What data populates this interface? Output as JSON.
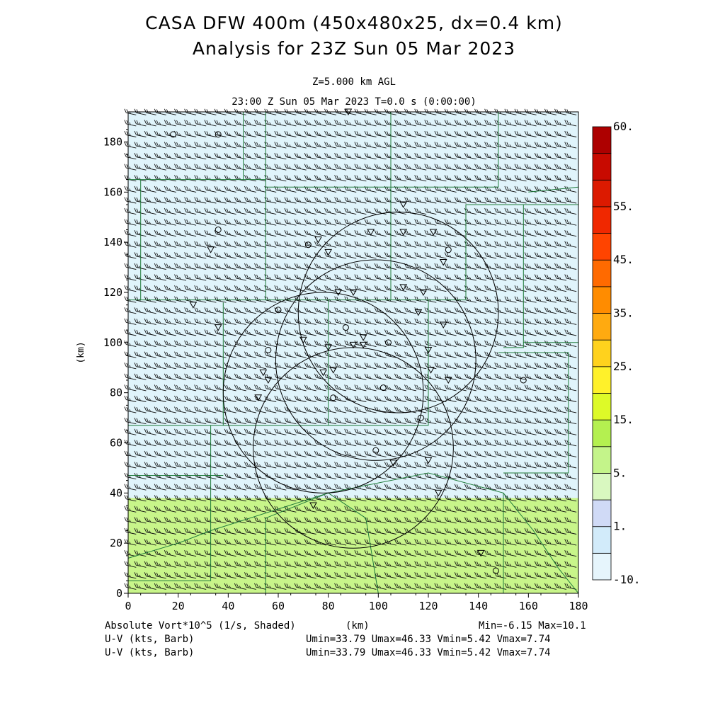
{
  "header": {
    "title_line1": "CASA DFW 400m (450x480x25, dx=0.4 km)",
    "title_line2": "Analysis for 23Z Sun 05 Mar 2023",
    "level": "Z=5.000 km AGL",
    "valid_time": "23:00 Z Sun 05 Mar 2023    T=0.0 s (0:00:00)"
  },
  "footer": {
    "field1": "Absolute Vort*10^5 (1/s, Shaded)",
    "xunit": "(km)",
    "minmax": "Min=-6.15 Max=10.1",
    "field2": "U-V (kts, Barb)",
    "field3": "U-V (kts, Barb)",
    "stats2": "Umin=33.79 Umax=46.33 Vmin=5.42 Vmax=7.74",
    "stats3": "Umin=33.79 Umax=46.33 Vmin=5.42 Vmax=7.74"
  },
  "chart_data": {
    "type": "heatmap",
    "xlabel": "(km)",
    "ylabel": "(km)",
    "xlim": [
      0,
      180
    ],
    "ylim": [
      0,
      192
    ],
    "xticks": [
      "0",
      "20",
      "40",
      "60",
      "80",
      "100",
      "120",
      "140",
      "160",
      "180"
    ],
    "yticks": [
      "0",
      "20",
      "40",
      "60",
      "80",
      "100",
      "120",
      "140",
      "160",
      "180"
    ],
    "xtick_values": [
      0,
      20,
      40,
      60,
      80,
      100,
      120,
      140,
      160,
      180
    ],
    "ytick_values": [
      0,
      20,
      40,
      60,
      80,
      100,
      120,
      140,
      160,
      180
    ],
    "shaded_regions": [
      {
        "y_range": [
          38,
          192
        ],
        "value_range": [
          -10,
          0
        ],
        "color": "#e0f4fb"
      },
      {
        "y_range": [
          0,
          38
        ],
        "value_range": [
          5,
          10
        ],
        "color": "#c8f58a"
      }
    ],
    "colorbar": {
      "colors": [
        "#e6f5fc",
        "#d2ebfa",
        "#d0daf6",
        "#d9f8c0",
        "#c4f48a",
        "#b4f050",
        "#ddfa28",
        "#fff12a",
        "#ffd21d",
        "#ffaa10",
        "#ff8c00",
        "#ff6a00",
        "#ff4400",
        "#f02800",
        "#dc1a00",
        "#c80a00",
        "#ad0000"
      ],
      "labels": [
        "-10.",
        "1.",
        "5.",
        "15.",
        "25.",
        "35.",
        "45.",
        "55.",
        "60."
      ]
    },
    "barb_grid": {
      "x_spacing_km": 4,
      "y_spacing_km": 4.4,
      "wind_direction": "westerly",
      "u_range_kts": [
        33.79,
        46.33
      ],
      "v_range_kts": [
        5.42,
        7.74
      ]
    },
    "radar_range_rings": [
      {
        "center": [
          78,
          80
        ],
        "radius_km": 40
      },
      {
        "center": [
          90,
          58
        ],
        "radius_km": 40
      },
      {
        "center": [
          108,
          112
        ],
        "radius_km": 40
      },
      {
        "center": [
          99,
          93
        ],
        "radius_km": 40
      }
    ],
    "station_markers": [
      {
        "x": 88,
        "y": 192,
        "symbol": "triangle"
      },
      {
        "x": 18,
        "y": 183,
        "symbol": "circle"
      },
      {
        "x": 36,
        "y": 183,
        "symbol": "circle"
      },
      {
        "x": 110,
        "y": 155,
        "symbol": "triangle"
      },
      {
        "x": 36,
        "y": 145,
        "symbol": "circle"
      },
      {
        "x": 97,
        "y": 144,
        "symbol": "triangle"
      },
      {
        "x": 110,
        "y": 144,
        "symbol": "triangle"
      },
      {
        "x": 122,
        "y": 144,
        "symbol": "triangle"
      },
      {
        "x": 33,
        "y": 137,
        "symbol": "triangle"
      },
      {
        "x": 76,
        "y": 141,
        "symbol": "triangle"
      },
      {
        "x": 72,
        "y": 139,
        "symbol": "circle"
      },
      {
        "x": 80,
        "y": 136,
        "symbol": "triangle"
      },
      {
        "x": 128,
        "y": 137,
        "symbol": "circle"
      },
      {
        "x": 126,
        "y": 132,
        "symbol": "triangle"
      },
      {
        "x": 84,
        "y": 120,
        "symbol": "triangle"
      },
      {
        "x": 90,
        "y": 120,
        "symbol": "triangle"
      },
      {
        "x": 110,
        "y": 122,
        "symbol": "triangle"
      },
      {
        "x": 118,
        "y": 120,
        "symbol": "triangle"
      },
      {
        "x": 26,
        "y": 115,
        "symbol": "triangle"
      },
      {
        "x": 60,
        "y": 113,
        "symbol": "circle"
      },
      {
        "x": 116,
        "y": 112,
        "symbol": "triangle"
      },
      {
        "x": 36,
        "y": 106,
        "symbol": "triangle"
      },
      {
        "x": 87,
        "y": 106,
        "symbol": "circle"
      },
      {
        "x": 126,
        "y": 107,
        "symbol": "triangle"
      },
      {
        "x": 70,
        "y": 101,
        "symbol": "triangle"
      },
      {
        "x": 94,
        "y": 102,
        "symbol": "triangle"
      },
      {
        "x": 104,
        "y": 100,
        "symbol": "circle"
      },
      {
        "x": 80,
        "y": 98,
        "symbol": "triangle"
      },
      {
        "x": 90,
        "y": 99,
        "symbol": "triangle"
      },
      {
        "x": 94,
        "y": 99,
        "symbol": "triangle"
      },
      {
        "x": 56,
        "y": 97,
        "symbol": "circle"
      },
      {
        "x": 120,
        "y": 97,
        "symbol": "triangle"
      },
      {
        "x": 54,
        "y": 88,
        "symbol": "triangle"
      },
      {
        "x": 78,
        "y": 88,
        "symbol": "triangle"
      },
      {
        "x": 82,
        "y": 89,
        "symbol": "triangle"
      },
      {
        "x": 121,
        "y": 89,
        "symbol": "triangle"
      },
      {
        "x": 56,
        "y": 85,
        "symbol": "triangle"
      },
      {
        "x": 128,
        "y": 85,
        "symbol": "triangle"
      },
      {
        "x": 158,
        "y": 85,
        "symbol": "circle"
      },
      {
        "x": 102,
        "y": 82,
        "symbol": "circle"
      },
      {
        "x": 52,
        "y": 78,
        "symbol": "triangle"
      },
      {
        "x": 82,
        "y": 78,
        "symbol": "circle"
      },
      {
        "x": 117,
        "y": 70,
        "symbol": "circle"
      },
      {
        "x": 99,
        "y": 57,
        "symbol": "circle"
      },
      {
        "x": 106,
        "y": 52,
        "symbol": "triangle"
      },
      {
        "x": 120,
        "y": 53,
        "symbol": "triangle"
      },
      {
        "x": 124,
        "y": 40,
        "symbol": "triangle"
      },
      {
        "x": 74,
        "y": 35,
        "symbol": "triangle"
      },
      {
        "x": 141,
        "y": 16,
        "symbol": "triangle"
      },
      {
        "x": 147,
        "y": 9,
        "symbol": "circle"
      }
    ],
    "county_lines": [
      [
        [
          0,
          165
        ],
        [
          46,
          165
        ],
        [
          46,
          192
        ]
      ],
      [
        [
          46,
          165
        ],
        [
          55,
          165
        ],
        [
          55,
          192
        ]
      ],
      [
        [
          55,
          162
        ],
        [
          105,
          162
        ],
        [
          105,
          192
        ]
      ],
      [
        [
          105,
          162
        ],
        [
          148,
          162
        ],
        [
          148,
          192
        ]
      ],
      [
        [
          148,
          155
        ],
        [
          180,
          155
        ]
      ],
      [
        [
          0,
          117
        ],
        [
          55,
          117
        ],
        [
          55,
          165
        ]
      ],
      [
        [
          5,
          117
        ],
        [
          5,
          165
        ]
      ],
      [
        [
          55,
          117
        ],
        [
          105,
          117
        ],
        [
          105,
          162
        ]
      ],
      [
        [
          105,
          117
        ],
        [
          135,
          117
        ],
        [
          135,
          155
        ],
        [
          148,
          155
        ]
      ],
      [
        [
          38,
          116
        ],
        [
          38,
          67
        ],
        [
          0,
          67
        ]
      ],
      [
        [
          38,
          67
        ],
        [
          80,
          67
        ],
        [
          80,
          117
        ]
      ],
      [
        [
          80,
          67
        ],
        [
          120,
          67
        ],
        [
          120,
          117
        ]
      ],
      [
        [
          38,
          47
        ],
        [
          0,
          47
        ]
      ],
      [
        [
          33,
          67
        ],
        [
          33,
          5
        ],
        [
          0,
          5
        ]
      ],
      [
        [
          33,
          25
        ],
        [
          80,
          40
        ],
        [
          120,
          48
        ],
        [
          150,
          40
        ],
        [
          162,
          25
        ],
        [
          172,
          10
        ],
        [
          180,
          0
        ]
      ],
      [
        [
          150,
          98
        ],
        [
          158,
          98
        ],
        [
          158,
          155
        ]
      ],
      [
        [
          158,
          100
        ],
        [
          180,
          100
        ]
      ],
      [
        [
          148,
          96
        ],
        [
          176,
          96
        ],
        [
          176,
          48
        ],
        [
          150,
          48
        ]
      ],
      [
        [
          0,
          14
        ],
        [
          20,
          20
        ],
        [
          33,
          25
        ]
      ],
      [
        [
          55,
          0
        ],
        [
          55,
          30
        ],
        [
          80,
          40
        ]
      ],
      [
        [
          100,
          0
        ],
        [
          95,
          30
        ],
        [
          80,
          40
        ]
      ],
      [
        [
          150,
          0
        ],
        [
          150,
          40
        ]
      ],
      [
        [
          160,
          160
        ],
        [
          180,
          162
        ]
      ]
    ]
  }
}
